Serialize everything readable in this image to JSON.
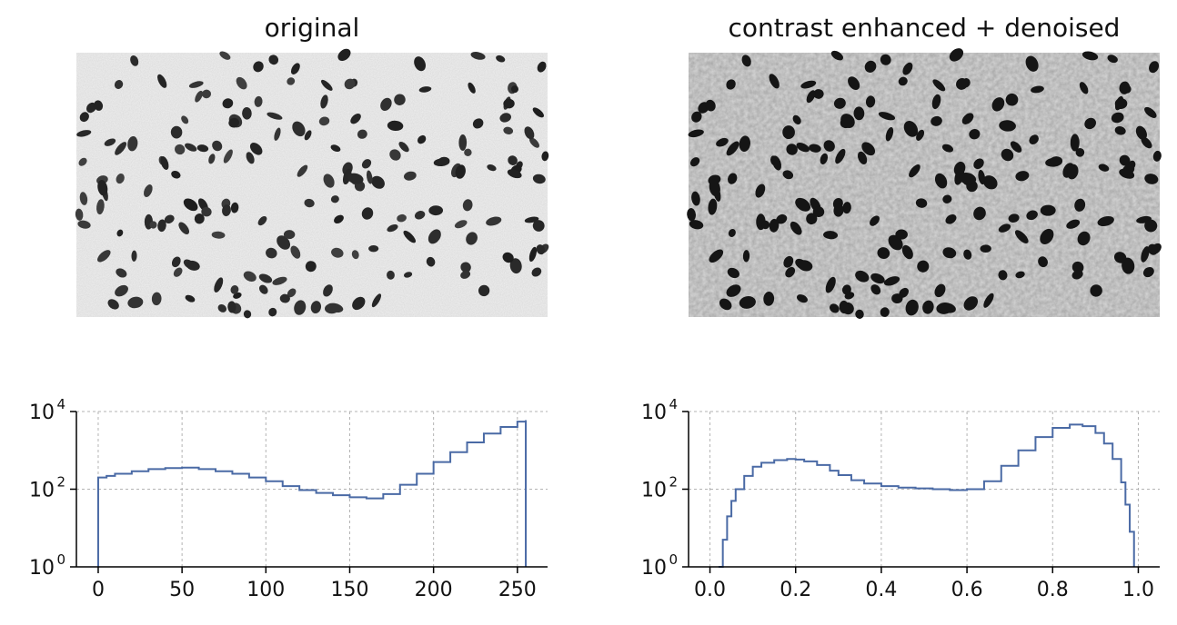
{
  "colors": {
    "hist_line": "#4a6aa5",
    "grid": "#b3b3b3",
    "axis": "#000000"
  },
  "panels": {
    "left_title": "original",
    "right_title": "contrast enhanced + denoised"
  },
  "chart_data": [
    {
      "type": "line",
      "chart_kind": "histogram",
      "title": "",
      "xlabel": "",
      "ylabel": "",
      "xlim": [
        -13,
        268
      ],
      "yscale": "log",
      "ylim": [
        1,
        10000
      ],
      "xticks": [
        0,
        50,
        100,
        150,
        200,
        250
      ],
      "xtick_labels": [
        "0",
        "50",
        "100",
        "150",
        "200",
        "250"
      ],
      "yticks": [
        1,
        100,
        10000
      ],
      "ytick_labels": [
        {
          "base": "10",
          "exp": "0"
        },
        {
          "base": "10",
          "exp": "2"
        },
        {
          "base": "10",
          "exp": "4"
        }
      ],
      "grid": true,
      "x": [
        0,
        5,
        10,
        20,
        30,
        40,
        50,
        60,
        70,
        80,
        90,
        100,
        110,
        120,
        130,
        140,
        150,
        160,
        170,
        180,
        190,
        200,
        210,
        220,
        230,
        240,
        250,
        255
      ],
      "y": [
        200,
        220,
        250,
        290,
        330,
        350,
        360,
        330,
        290,
        250,
        200,
        160,
        120,
        95,
        80,
        70,
        62,
        58,
        75,
        130,
        250,
        500,
        900,
        1600,
        2700,
        4000,
        5500,
        6000
      ]
    },
    {
      "type": "line",
      "chart_kind": "histogram",
      "title": "",
      "xlabel": "",
      "ylabel": "",
      "xlim": [
        -0.05,
        1.05
      ],
      "yscale": "log",
      "ylim": [
        1,
        10000
      ],
      "xticks": [
        0.0,
        0.2,
        0.4,
        0.6,
        0.8,
        1.0
      ],
      "xtick_labels": [
        "0.0",
        "0.2",
        "0.4",
        "0.6",
        "0.8",
        "1.0"
      ],
      "yticks": [
        1,
        100,
        10000
      ],
      "ytick_labels": [
        {
          "base": "10",
          "exp": "0"
        },
        {
          "base": "10",
          "exp": "2"
        },
        {
          "base": "10",
          "exp": "4"
        }
      ],
      "grid": true,
      "x": [
        0.02,
        0.03,
        0.04,
        0.05,
        0.06,
        0.08,
        0.1,
        0.12,
        0.15,
        0.18,
        0.2,
        0.22,
        0.25,
        0.28,
        0.3,
        0.33,
        0.36,
        0.4,
        0.44,
        0.48,
        0.52,
        0.56,
        0.6,
        0.64,
        0.68,
        0.72,
        0.76,
        0.8,
        0.84,
        0.87,
        0.9,
        0.92,
        0.94,
        0.96,
        0.97,
        0.98,
        0.99
      ],
      "y": [
        1,
        5,
        20,
        50,
        100,
        220,
        380,
        480,
        560,
        600,
        580,
        520,
        420,
        300,
        230,
        170,
        140,
        120,
        110,
        105,
        100,
        95,
        100,
        160,
        400,
        1000,
        2200,
        3800,
        4600,
        4200,
        2800,
        1500,
        600,
        150,
        40,
        8,
        1
      ]
    }
  ]
}
